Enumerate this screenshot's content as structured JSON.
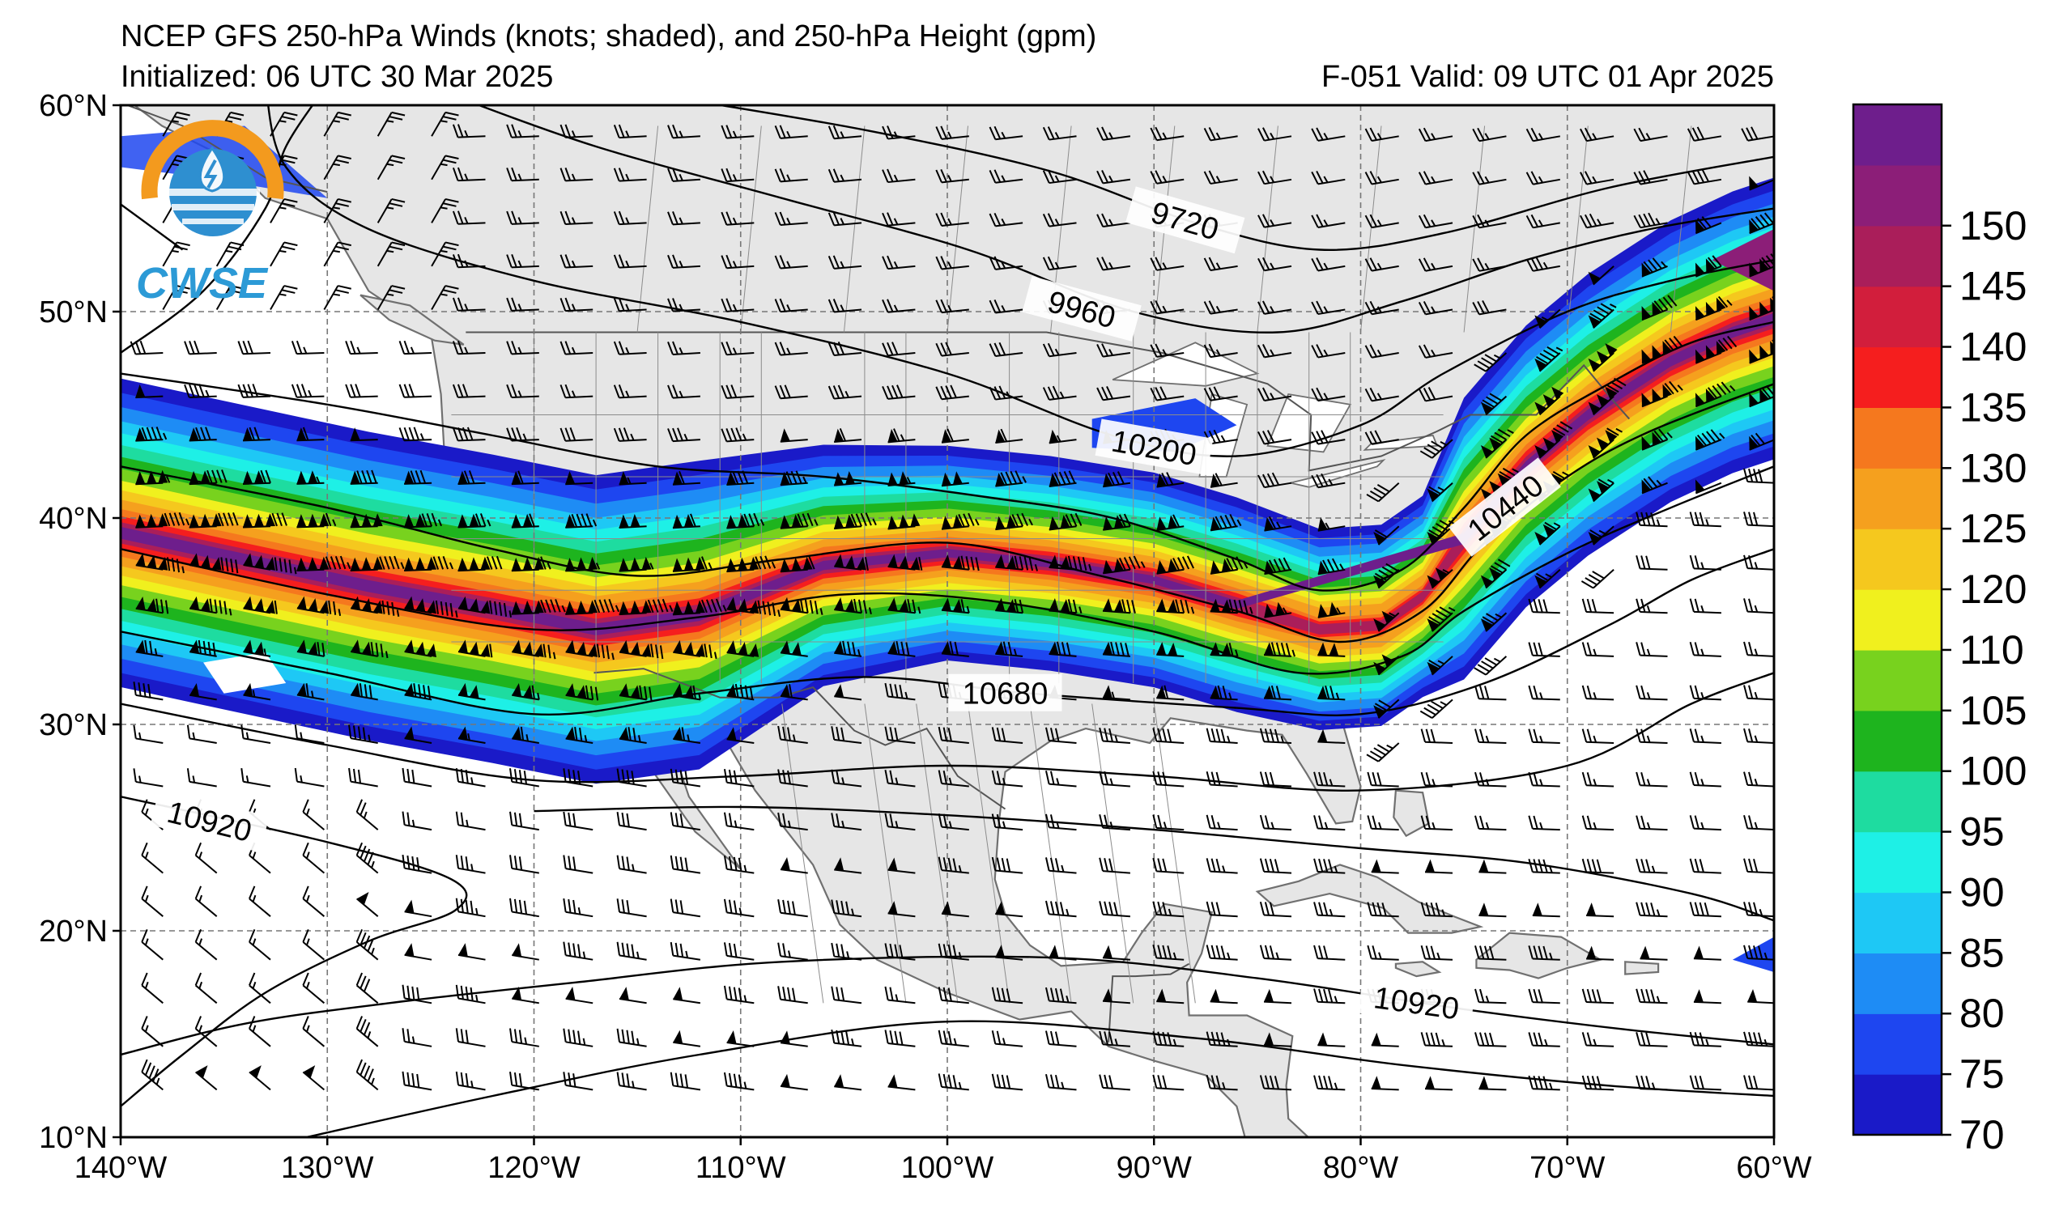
{
  "header": {
    "title": "NCEP GFS 250-hPa Winds (knots; shaded), and 250-hPa Height (gpm)",
    "initialized": "Initialized: 06 UTC 30 Mar 2025",
    "valid": "F-051  Valid: 09 UTC 01 Apr 2025"
  },
  "logo": {
    "text": "CWSE",
    "ring_color": "#f39a1e",
    "text_color": "#2c9ad6"
  },
  "map": {
    "lat_labels": [
      "60°N",
      "50°N",
      "40°N",
      "30°N",
      "20°N",
      "10°N"
    ],
    "lon_labels": [
      "140°W",
      "130°W",
      "120°W",
      "110°W",
      "100°W",
      "90°W",
      "80°W",
      "70°W",
      "60°W"
    ],
    "contour_labels": [
      {
        "text": "9720",
        "lon": -88.5,
        "lat": 54.4,
        "angle": 16
      },
      {
        "text": "9960",
        "lon": -93.5,
        "lat": 50.1,
        "angle": 15
      },
      {
        "text": "10200",
        "lon": -90.0,
        "lat": 43.4,
        "angle": 10
      },
      {
        "text": "10440",
        "lon": -73.0,
        "lat": 40.5,
        "angle": -38
      },
      {
        "text": "10680",
        "lon": -97.2,
        "lat": 31.5,
        "angle": 0
      },
      {
        "text": "10920",
        "lon": -135.7,
        "lat": 25.3,
        "angle": 14
      },
      {
        "text": "10920",
        "lon": -77.3,
        "lat": 16.5,
        "angle": 8
      }
    ],
    "land_color": "#e6e6e6"
  },
  "colorbar": {
    "ticks": [
      "70",
      "75",
      "80",
      "85",
      "90",
      "95",
      "100",
      "105",
      "110",
      "120",
      "125",
      "130",
      "135",
      "140",
      "145",
      "150"
    ],
    "colors": [
      "#1a1ac8",
      "#1e46f0",
      "#1e8cf5",
      "#1ec8f5",
      "#1ef0e6",
      "#1edca0",
      "#1eb41e",
      "#78d21e",
      "#f0f01e",
      "#f5c81e",
      "#f5a01e",
      "#f5781e",
      "#f51e1e",
      "#d21e3c",
      "#aa1e5a",
      "#8c1e78",
      "#6e1e8c"
    ]
  }
}
